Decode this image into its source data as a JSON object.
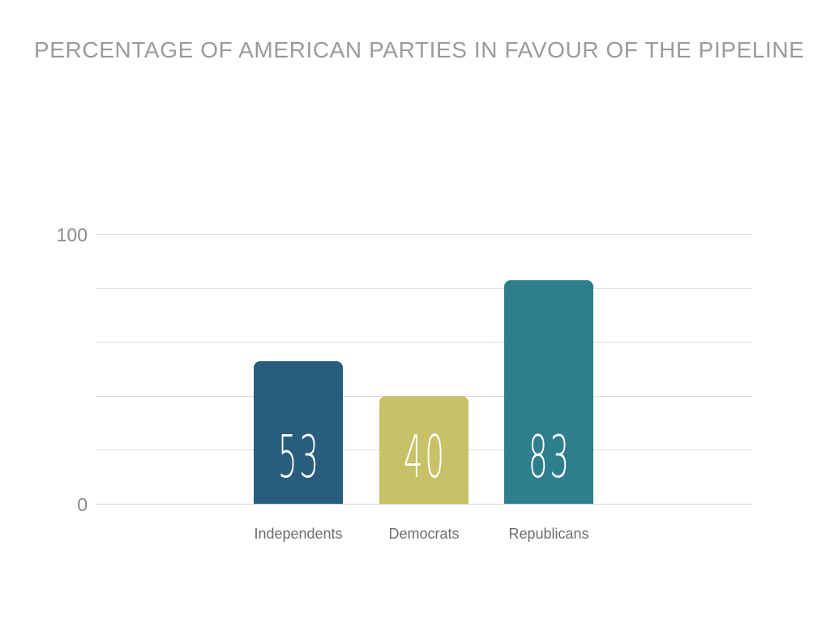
{
  "slide": {
    "background": "#ffffff"
  },
  "chart_data": {
    "type": "bar",
    "title": "PERCENTAGE OF AMERICAN PARTIES IN FAVOUR OF THE PIPELINE",
    "categories": [
      "Independents",
      "Democrats",
      "Republicans"
    ],
    "values": [
      53,
      40,
      83
    ],
    "bar_colors": [
      "#285d7e",
      "#c7c167",
      "#2e7f8e"
    ],
    "value_labels": [
      "53",
      "40",
      "83"
    ],
    "value_label_color": "#ffffff",
    "xlabel": "",
    "ylabel": "",
    "ylim": [
      0,
      100
    ],
    "ytick_labels_shown": {
      "top": "100",
      "bottom": "0"
    },
    "gridline_values": [
      0,
      20,
      40,
      60,
      80,
      100
    ],
    "grid": true,
    "legend": false,
    "colors": {
      "title": "#9b9b9b",
      "tick_label": "#8a8a8a",
      "category_label": "#6d6d6d",
      "gridline": "#dcdcdc",
      "axis_line": "#cfcfcf",
      "background": "#ffffff"
    }
  }
}
